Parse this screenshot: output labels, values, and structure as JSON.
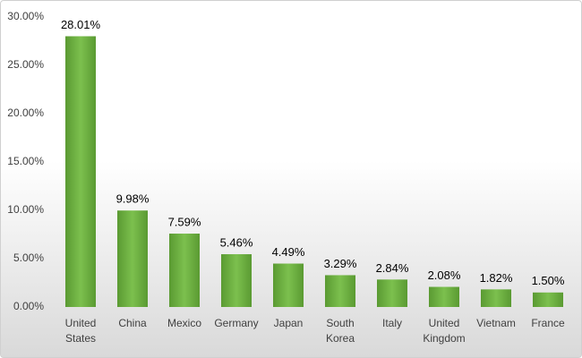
{
  "chart_data": {
    "type": "bar",
    "categories": [
      "United States",
      "China",
      "Mexico",
      "Germany",
      "Japan",
      "South Korea",
      "Italy",
      "United Kingdom",
      "Vietnam",
      "France"
    ],
    "values": [
      28.01,
      9.98,
      7.59,
      5.46,
      4.49,
      3.29,
      2.84,
      2.08,
      1.82,
      1.5
    ],
    "value_labels": [
      "28.01%",
      "9.98%",
      "7.59%",
      "5.46%",
      "4.49%",
      "3.29%",
      "2.84%",
      "2.08%",
      "1.82%",
      "1.50%"
    ],
    "color": "#70ad47",
    "ylim": [
      0,
      30
    ],
    "yticks": [
      {
        "value": 0,
        "label": "0.00%"
      },
      {
        "value": 5,
        "label": "5.00%"
      },
      {
        "value": 10,
        "label": "10.00%"
      },
      {
        "value": 15,
        "label": "15.00%"
      },
      {
        "value": 20,
        "label": "20.00%"
      },
      {
        "value": 25,
        "label": "25.00%"
      },
      {
        "value": 30,
        "label": "30.00%"
      }
    ],
    "grid": false
  }
}
